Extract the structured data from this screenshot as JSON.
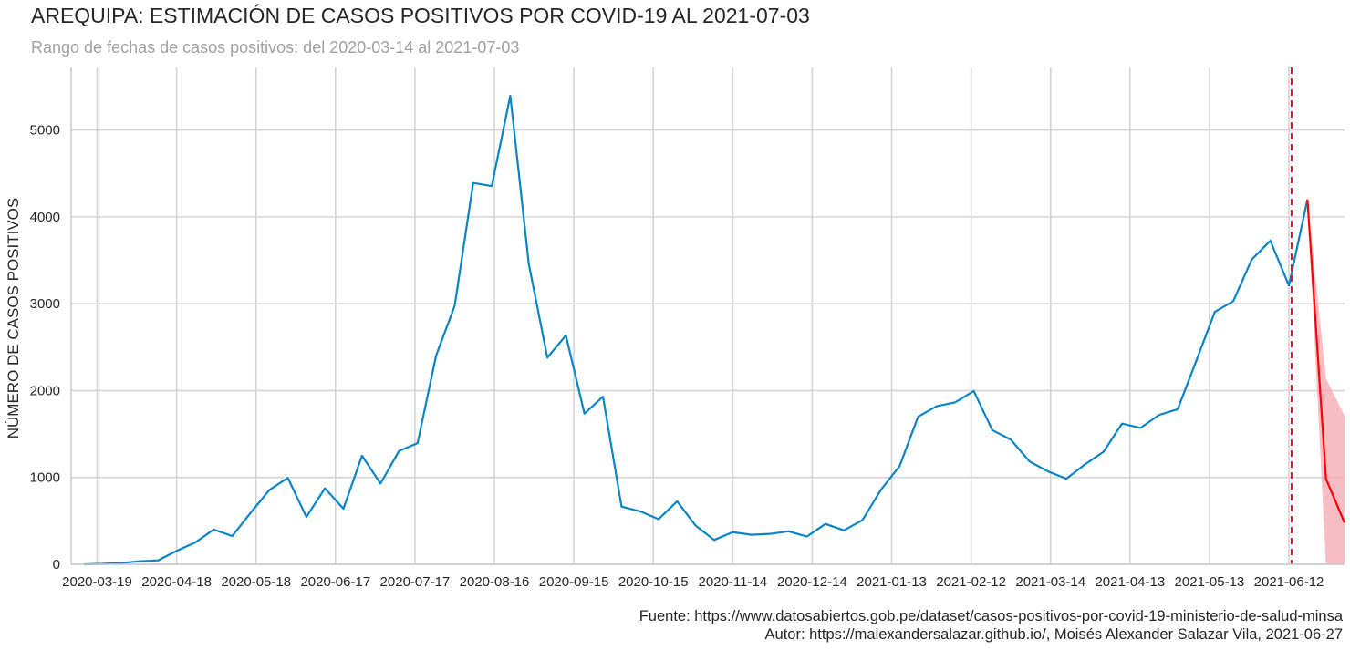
{
  "chart_data": {
    "type": "line",
    "title": "AREQUIPA: ESTIMACIÓN DE CASOS POSITIVOS POR COVID-19 AL 2021-07-03",
    "subtitle": "Rango de fechas de casos positivos: del 2020-03-14 al 2021-07-03",
    "xlabel": "",
    "ylabel": "NÚMERO DE CASOS POSITIVOS",
    "x_ticks": [
      "2020-03-19",
      "2020-04-18",
      "2020-05-18",
      "2020-06-17",
      "2020-07-17",
      "2020-08-16",
      "2020-09-15",
      "2020-10-15",
      "2020-11-14",
      "2020-12-14",
      "2021-01-13",
      "2021-02-12",
      "2021-03-14",
      "2021-04-13",
      "2021-05-13",
      "2021-06-12"
    ],
    "y_ticks": [
      0,
      1000,
      2000,
      3000,
      4000,
      5000
    ],
    "xlim": [
      "2020-03-14",
      "2021-07-03"
    ],
    "ylim": [
      0,
      5720
    ],
    "grid": true,
    "series": [
      {
        "color": "#0a84c6",
        "points": [
          [
            "2020-03-14",
            0
          ],
          [
            "2020-03-21",
            5
          ],
          [
            "2020-03-28",
            15
          ],
          [
            "2020-04-04",
            35
          ],
          [
            "2020-04-11",
            45
          ],
          [
            "2020-04-18",
            155
          ],
          [
            "2020-04-25",
            250
          ],
          [
            "2020-05-02",
            400
          ],
          [
            "2020-05-09",
            325
          ],
          [
            "2020-05-16",
            595
          ],
          [
            "2020-05-23",
            855
          ],
          [
            "2020-05-30",
            995
          ],
          [
            "2020-06-06",
            545
          ],
          [
            "2020-06-13",
            875
          ],
          [
            "2020-06-20",
            640
          ],
          [
            "2020-06-27",
            1250
          ],
          [
            "2020-07-04",
            930
          ],
          [
            "2020-07-11",
            1305
          ],
          [
            "2020-07-18",
            1395
          ],
          [
            "2020-07-25",
            2405
          ],
          [
            "2020-08-01",
            2975
          ],
          [
            "2020-08-08",
            4390
          ],
          [
            "2020-08-15",
            4355
          ],
          [
            "2020-08-22",
            5395
          ],
          [
            "2020-08-29",
            3455
          ],
          [
            "2020-09-05",
            2380
          ],
          [
            "2020-09-12",
            2635
          ],
          [
            "2020-09-19",
            1735
          ],
          [
            "2020-09-26",
            1930
          ],
          [
            "2020-10-03",
            665
          ],
          [
            "2020-10-10",
            610
          ],
          [
            "2020-10-17",
            520
          ],
          [
            "2020-10-24",
            725
          ],
          [
            "2020-10-31",
            445
          ],
          [
            "2020-11-07",
            280
          ],
          [
            "2020-11-14",
            370
          ],
          [
            "2020-11-21",
            340
          ],
          [
            "2020-11-28",
            350
          ],
          [
            "2020-12-05",
            380
          ],
          [
            "2020-12-12",
            320
          ],
          [
            "2020-12-19",
            465
          ],
          [
            "2020-12-26",
            390
          ],
          [
            "2021-01-02",
            510
          ],
          [
            "2021-01-09",
            860
          ],
          [
            "2021-01-16",
            1130
          ],
          [
            "2021-01-23",
            1700
          ],
          [
            "2021-01-30",
            1820
          ],
          [
            "2021-02-06",
            1865
          ],
          [
            "2021-02-13",
            1995
          ],
          [
            "2021-02-20",
            1545
          ],
          [
            "2021-02-27",
            1435
          ],
          [
            "2021-03-06",
            1185
          ],
          [
            "2021-03-13",
            1070
          ],
          [
            "2021-03-20",
            985
          ],
          [
            "2021-03-27",
            1150
          ],
          [
            "2021-04-03",
            1295
          ],
          [
            "2021-04-10",
            1620
          ],
          [
            "2021-04-17",
            1570
          ],
          [
            "2021-04-24",
            1720
          ],
          [
            "2021-05-01",
            1785
          ],
          [
            "2021-05-08",
            2340
          ],
          [
            "2021-05-15",
            2905
          ],
          [
            "2021-05-22",
            3030
          ],
          [
            "2021-05-29",
            3510
          ],
          [
            "2021-06-05",
            3725
          ],
          [
            "2021-06-12",
            3210
          ],
          [
            "2021-06-19",
            4200
          ]
        ]
      },
      {
        "color": "#ff0000",
        "points": [
          [
            "2021-06-19",
            4200
          ],
          [
            "2021-06-26",
            985
          ],
          [
            "2021-07-03",
            480
          ]
        ]
      }
    ],
    "band": {
      "color": "#f4a6b0",
      "upper": [
        [
          "2021-06-19",
          4200
        ],
        [
          "2021-06-26",
          2140
        ],
        [
          "2021-07-03",
          1710
        ]
      ],
      "lower": [
        [
          "2021-06-19",
          4200
        ],
        [
          "2021-06-26",
          0
        ],
        [
          "2021-07-03",
          0
        ]
      ]
    },
    "vline": {
      "x": "2021-06-13",
      "color": "#e0102a"
    }
  },
  "footer": {
    "source": "Fuente: https://www.datosabiertos.gob.pe/dataset/casos-positivos-por-covid-19-ministerio-de-salud-minsa",
    "author": "Autor: https://malexandersalazar.github.io/, Moisés Alexander Salazar Vila, 2021-06-27"
  }
}
